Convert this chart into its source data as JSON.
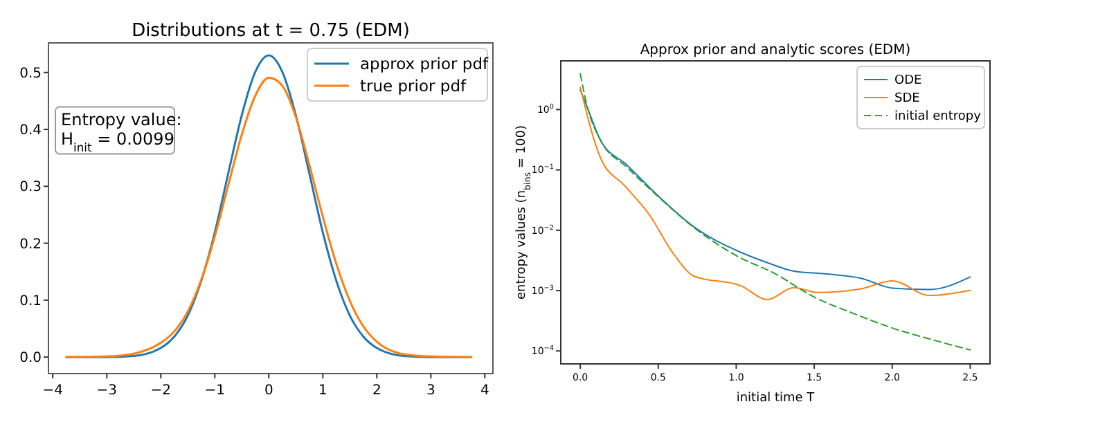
{
  "chart_data": [
    {
      "type": "line",
      "title": "Distributions at t = 0.75 (EDM)",
      "x": [
        -3.75,
        -3.5,
        -3,
        -2.5,
        -2,
        -1.75,
        -1.5,
        -1.25,
        -1,
        -0.75,
        -0.5,
        -0.25,
        0,
        0.25,
        0.5,
        0.75,
        1,
        1.25,
        1.5,
        1.75,
        2,
        2.5,
        3,
        3.5,
        3.75
      ],
      "series": [
        {
          "name": "approx prior pdf",
          "color": "#1f77b4",
          "values": [
            0,
            0,
            0,
            0.002,
            0.016,
            0.036,
            0.073,
            0.134,
            0.219,
            0.323,
            0.425,
            0.501,
            0.53,
            0.501,
            0.425,
            0.323,
            0.219,
            0.134,
            0.073,
            0.036,
            0.016,
            0.002,
            0,
            0,
            0
          ]
        },
        {
          "name": "true prior pdf",
          "color": "#ff7f0e",
          "values": [
            0,
            0,
            0.001,
            0.006,
            0.025,
            0.045,
            0.08,
            0.136,
            0.212,
            0.302,
            0.391,
            0.459,
            0.491,
            0.477,
            0.422,
            0.338,
            0.247,
            0.164,
            0.099,
            0.054,
            0.027,
            0.005,
            0.001,
            0,
            0
          ]
        }
      ],
      "xlim": [
        -4.08,
        4.15
      ],
      "xticks": [
        {
          "value": -4,
          "label": "−4"
        },
        {
          "value": -3,
          "label": "−3"
        },
        {
          "value": -2,
          "label": "−2"
        },
        {
          "value": -1,
          "label": "−1"
        },
        0,
        1,
        2,
        3,
        4
      ],
      "ylim": [
        -0.029,
        0.552
      ],
      "yticks": [
        {
          "value": 0,
          "label": "0.0"
        },
        0.1,
        0.2,
        0.3,
        0.4,
        0.5
      ],
      "annotations": [
        "Entropy value:\nH$_{init}$ = 0.0099"
      ],
      "legend": "top right",
      "grid": false
    },
    {
      "type": "line",
      "title": "Approx prior and analytic scores (EDM)",
      "xlabel": "initial time T",
      "ylabel": "entropy values (n$_{bins}$ = 100)",
      "log": "y",
      "series": [
        {
          "name": "ODE",
          "color": "#1f77b4",
          "x": [
            0,
            0.05,
            0.13,
            0.3,
            0.5,
            0.73,
            1.03,
            1.2,
            1.37,
            1.57,
            1.8,
            2.0,
            2.24,
            2.5
          ],
          "values": [
            2.13,
            1.0,
            0.31,
            0.12,
            0.037,
            0.0113,
            0.0043,
            0.0029,
            0.0021,
            0.0019,
            0.0016,
            0.0011,
            0.00104,
            0.00168
          ]
        },
        {
          "name": "SDE",
          "color": "#ff7f0e",
          "x": [
            0,
            0.13,
            0.29,
            0.44,
            0.6,
            0.73,
            1.03,
            1.2,
            1.37,
            1.52,
            1.8,
            2.0,
            2.24,
            2.5
          ],
          "values": [
            2.33,
            0.158,
            0.053,
            0.0185,
            0.004,
            0.00173,
            0.0012,
            0.00071,
            0.00112,
            0.00093,
            0.00107,
            0.00145,
            0.00083,
            0.00101
          ]
        },
        {
          "name": "initial entropy",
          "color": "#2ca02c",
          "line_style": "dashed",
          "x": [
            0,
            0.05,
            0.13,
            0.3,
            0.5,
            0.73,
            1.0,
            1.25,
            1.5,
            1.75,
            2.0,
            2.25,
            2.5
          ],
          "values": [
            3.9,
            1.0,
            0.31,
            0.11,
            0.036,
            0.011,
            0.0038,
            0.0019,
            0.00078,
            0.00042,
            0.00024,
            0.000155,
            0.000104
          ]
        }
      ],
      "xlim": [
        -0.125,
        2.627
      ],
      "xticks": [
        {
          "value": 0,
          "label": "0.0"
        },
        0.5,
        {
          "value": 1,
          "label": "1.0"
        },
        1.5,
        {
          "value": 2,
          "label": "2.0"
        },
        2.5
      ],
      "ylim": [
        6.1e-05,
        6.4
      ],
      "yticks": [
        {
          "value": 0.0001,
          "label": "10$^{−4}$"
        },
        {
          "value": 0.001,
          "label": "10$^{−3}$"
        },
        {
          "value": 0.01,
          "label": "10$^{−2}$"
        },
        {
          "value": 0.1,
          "label": "10$^{−1}$"
        },
        {
          "value": 1,
          "label": "10$^{0}$"
        }
      ],
      "legend": "top right",
      "grid": false
    }
  ]
}
